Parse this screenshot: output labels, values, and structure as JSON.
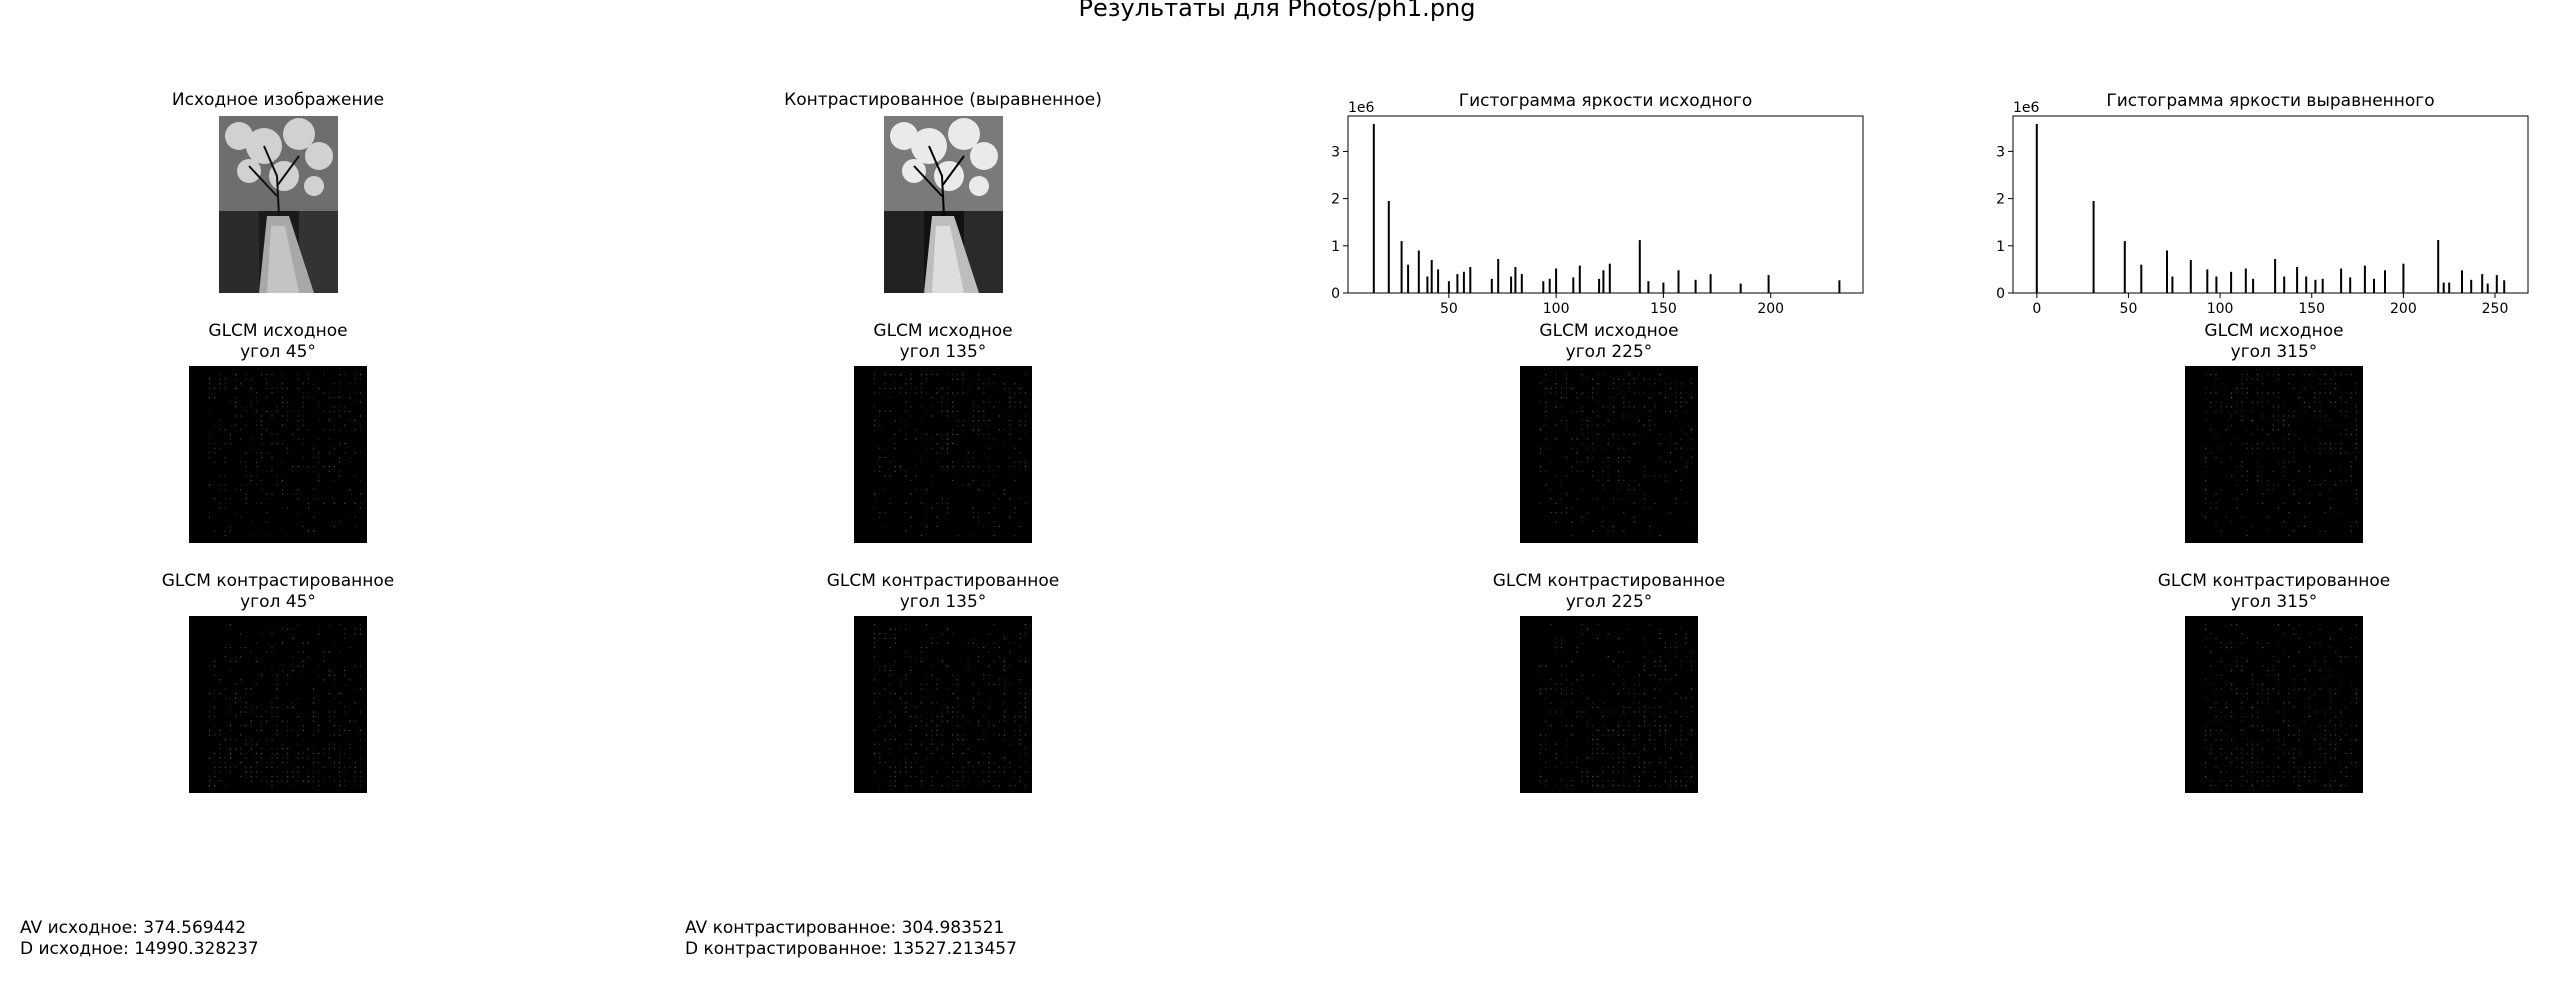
{
  "suptitle": "Результаты для Photos/ph1.png",
  "row1": {
    "original_title": "Исходное изображение",
    "equalized_title": "Контрастированное (выравненное)"
  },
  "chart_data": [
    {
      "type": "bar",
      "title": "Гистограмма яркости исходного",
      "xlabel": "",
      "ylabel": "",
      "offset_label": "1e6",
      "xlim": [
        3,
        243
      ],
      "ylim": [
        0,
        3.75
      ],
      "xticks": [
        50,
        100,
        150,
        200
      ],
      "yticks": [
        0,
        1,
        2,
        3
      ],
      "bars": [
        {
          "x": 15,
          "y": 3.58
        },
        {
          "x": 22,
          "y": 1.95
        },
        {
          "x": 28,
          "y": 1.1
        },
        {
          "x": 31,
          "y": 0.6
        },
        {
          "x": 36,
          "y": 0.9
        },
        {
          "x": 40,
          "y": 0.35
        },
        {
          "x": 42,
          "y": 0.7
        },
        {
          "x": 45,
          "y": 0.5
        },
        {
          "x": 50,
          "y": 0.25
        },
        {
          "x": 54,
          "y": 0.4
        },
        {
          "x": 57,
          "y": 0.45
        },
        {
          "x": 60,
          "y": 0.55
        },
        {
          "x": 70,
          "y": 0.3
        },
        {
          "x": 73,
          "y": 0.72
        },
        {
          "x": 79,
          "y": 0.35
        },
        {
          "x": 81,
          "y": 0.55
        },
        {
          "x": 84,
          "y": 0.4
        },
        {
          "x": 94,
          "y": 0.25
        },
        {
          "x": 97,
          "y": 0.3
        },
        {
          "x": 100,
          "y": 0.52
        },
        {
          "x": 108,
          "y": 0.33
        },
        {
          "x": 111,
          "y": 0.58
        },
        {
          "x": 120,
          "y": 0.3
        },
        {
          "x": 122,
          "y": 0.48
        },
        {
          "x": 125,
          "y": 0.62
        },
        {
          "x": 139,
          "y": 1.12
        },
        {
          "x": 143,
          "y": 0.25
        },
        {
          "x": 150,
          "y": 0.22
        },
        {
          "x": 157,
          "y": 0.48
        },
        {
          "x": 165,
          "y": 0.28
        },
        {
          "x": 172,
          "y": 0.4
        },
        {
          "x": 186,
          "y": 0.2
        },
        {
          "x": 199,
          "y": 0.38
        },
        {
          "x": 232,
          "y": 0.27
        }
      ]
    },
    {
      "type": "bar",
      "title": "Гистограмма яркости выравненного",
      "xlabel": "",
      "ylabel": "",
      "offset_label": "1e6",
      "xlim": [
        -13,
        268
      ],
      "ylim": [
        0,
        3.75
      ],
      "xticks": [
        0,
        50,
        100,
        150,
        200,
        250
      ],
      "yticks": [
        0,
        1,
        2,
        3
      ],
      "bars": [
        {
          "x": 0,
          "y": 3.58
        },
        {
          "x": 31,
          "y": 1.95
        },
        {
          "x": 48,
          "y": 1.1
        },
        {
          "x": 57,
          "y": 0.6
        },
        {
          "x": 71,
          "y": 0.9
        },
        {
          "x": 74,
          "y": 0.35
        },
        {
          "x": 84,
          "y": 0.7
        },
        {
          "x": 93,
          "y": 0.5
        },
        {
          "x": 98,
          "y": 0.35
        },
        {
          "x": 106,
          "y": 0.45
        },
        {
          "x": 114,
          "y": 0.52
        },
        {
          "x": 118,
          "y": 0.3
        },
        {
          "x": 130,
          "y": 0.72
        },
        {
          "x": 135,
          "y": 0.35
        },
        {
          "x": 142,
          "y": 0.55
        },
        {
          "x": 147,
          "y": 0.35
        },
        {
          "x": 152,
          "y": 0.28
        },
        {
          "x": 156,
          "y": 0.3
        },
        {
          "x": 166,
          "y": 0.52
        },
        {
          "x": 171,
          "y": 0.33
        },
        {
          "x": 179,
          "y": 0.58
        },
        {
          "x": 184,
          "y": 0.3
        },
        {
          "x": 190,
          "y": 0.48
        },
        {
          "x": 200,
          "y": 0.62
        },
        {
          "x": 219,
          "y": 1.12
        },
        {
          "x": 222,
          "y": 0.22
        },
        {
          "x": 225,
          "y": 0.22
        },
        {
          "x": 232,
          "y": 0.48
        },
        {
          "x": 237,
          "y": 0.28
        },
        {
          "x": 243,
          "y": 0.4
        },
        {
          "x": 246,
          "y": 0.2
        },
        {
          "x": 251,
          "y": 0.38
        },
        {
          "x": 255,
          "y": 0.27
        }
      ]
    }
  ],
  "glcm_original": [
    {
      "line1": "GLCM исходное",
      "line2": "угол 45°"
    },
    {
      "line1": "GLCM исходное",
      "line2": "угол 135°"
    },
    {
      "line1": "GLCM исходное",
      "line2": "угол 225°"
    },
    {
      "line1": "GLCM исходное",
      "line2": "угол 315°"
    }
  ],
  "glcm_equalized": [
    {
      "line1": "GLCM контрастированное",
      "line2": "угол 45°"
    },
    {
      "line1": "GLCM контрастированное",
      "line2": "угол 135°"
    },
    {
      "line1": "GLCM контрастированное",
      "line2": "угол 225°"
    },
    {
      "line1": "GLCM контрастированное",
      "line2": "угол 315°"
    }
  ],
  "stats": {
    "original": {
      "av": "AV исходное: 374.569442",
      "d": "D исходное: 14990.328237"
    },
    "equalized": {
      "av": "AV контрастированное: 304.983521",
      "d": "D контрастированное: 13527.213457"
    }
  }
}
